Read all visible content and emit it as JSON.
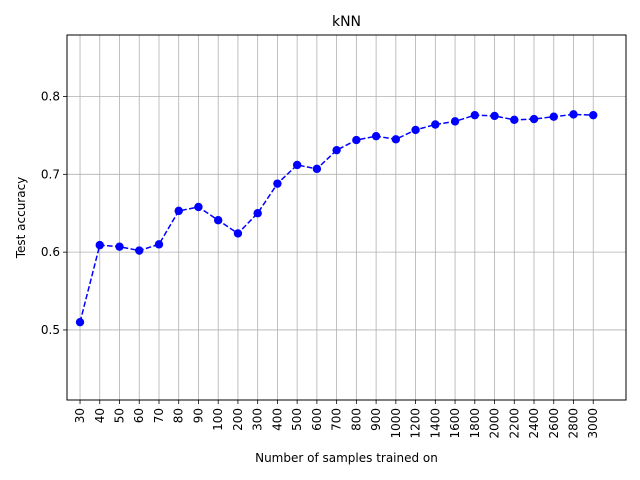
{
  "chart_data": {
    "type": "line",
    "title": "kNN",
    "xlabel": "Number of samples trained on",
    "ylabel": "Test accuracy",
    "categories": [
      "30",
      "40",
      "50",
      "60",
      "70",
      "80",
      "90",
      "100",
      "200",
      "300",
      "400",
      "500",
      "600",
      "700",
      "800",
      "900",
      "1000",
      "1200",
      "1400",
      "1600",
      "1800",
      "2000",
      "2200",
      "2400",
      "2600",
      "2800",
      "3000"
    ],
    "series": [
      {
        "values": [
          0.51,
          0.609,
          0.607,
          0.602,
          0.61,
          0.653,
          0.658,
          0.641,
          0.624,
          0.65,
          0.688,
          0.712,
          0.707,
          0.731,
          0.744,
          0.749,
          0.745,
          0.757,
          0.764,
          0.768,
          0.776,
          0.775,
          0.77,
          0.771,
          0.774,
          0.777,
          0.776
        ],
        "color": "#0000ff",
        "line_style": "dashed",
        "marker": "circle"
      }
    ],
    "ylim": [
      0.41,
      0.879
    ],
    "yticks": [
      0.5,
      0.6,
      0.7,
      0.8
    ],
    "ytick_labels": [
      "0.5",
      "0.6",
      "0.7",
      "0.8"
    ],
    "grid": true,
    "x_tick_rotation": "vertical"
  }
}
